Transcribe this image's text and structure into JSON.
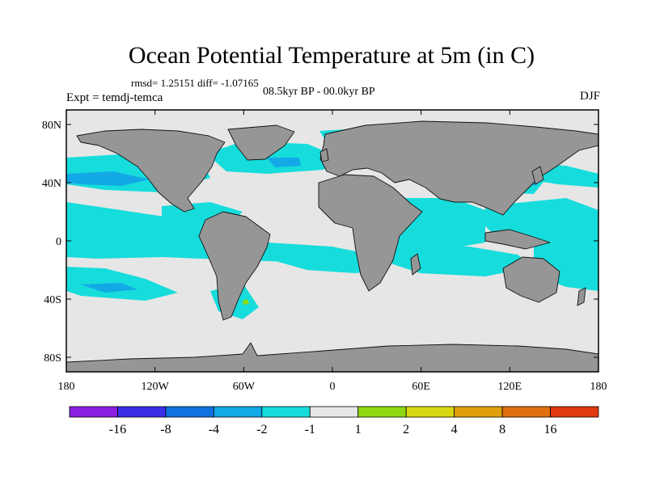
{
  "header": {
    "title": "Ocean Potential Temperature at 5m (in C)",
    "stats": "rmsd= 1.25151 diff= -1.07165",
    "period": "08.5kyr BP - 00.0kyr BP",
    "experiment": "Expt = temdj-temca",
    "season": "DJF"
  },
  "map": {
    "projection": "cylindrical-equidistant",
    "land_color": "#969696",
    "ocean_neutral_color": "#e6e6e6",
    "lon_ticks": [
      {
        "lon": -180,
        "label": "180"
      },
      {
        "lon": -120,
        "label": "120W"
      },
      {
        "lon": -60,
        "label": "60W"
      },
      {
        "lon": 0,
        "label": "0"
      },
      {
        "lon": 60,
        "label": "60E"
      },
      {
        "lon": 120,
        "label": "120E"
      },
      {
        "lon": 180,
        "label": "180"
      }
    ],
    "lat_ticks": [
      {
        "lat": 80,
        "label": "80N"
      },
      {
        "lat": 40,
        "label": "40N"
      },
      {
        "lat": 0,
        "label": "0"
      },
      {
        "lat": -40,
        "label": "40S"
      },
      {
        "lat": -80,
        "label": "80S"
      }
    ]
  },
  "colorbar": {
    "colors": [
      "#8a1fe0",
      "#3a2ee6",
      "#0e73e0",
      "#12a9e6",
      "#17dcdc",
      "#e6e6e6",
      "#8fd812",
      "#d8d812",
      "#e0a00e",
      "#e0700e",
      "#e03a0e"
    ],
    "labels": [
      "-16",
      "-8",
      "-4",
      "-2",
      "-1",
      "1",
      "2",
      "4",
      "8",
      "16"
    ]
  }
}
